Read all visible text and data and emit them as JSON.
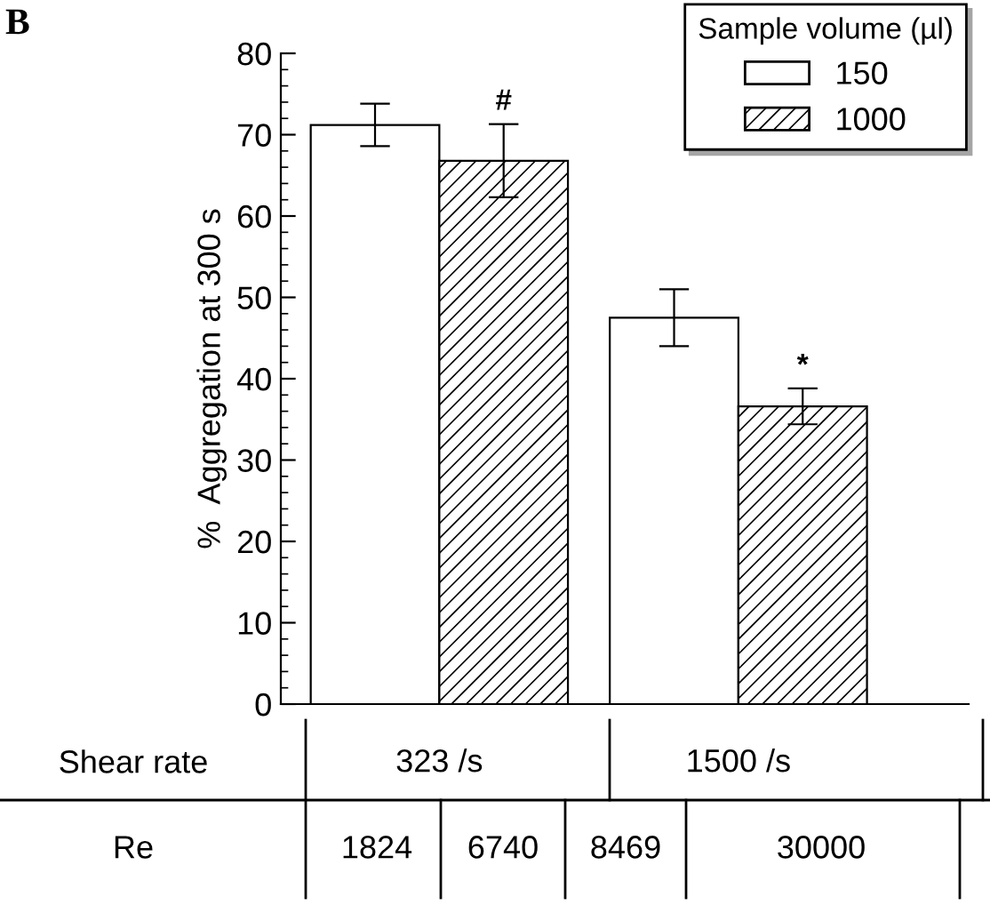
{
  "chart_data": {
    "type": "bar",
    "ylabel": "%  Aggregation at 300 s",
    "xlabel": "Shear rate",
    "legend_title": "Sample volume (µl)",
    "categories": [
      "323 /s",
      "1500 /s"
    ],
    "series": [
      {
        "name": "150",
        "color": "#ffffff",
        "values": [
          71.2,
          47.5
        ],
        "errors": [
          2.6,
          3.5
        ]
      },
      {
        "name": "1000",
        "color": "#000000",
        "values": [
          66.8,
          36.6
        ],
        "errors": [
          4.5,
          2.2
        ]
      }
    ],
    "ylim": [
      0,
      80
    ],
    "yticks": [
      0,
      10,
      20,
      30,
      40,
      50,
      60,
      70,
      80
    ],
    "legend": "top right",
    "annotations": [
      "B",
      "#",
      "*",
      "Re",
      "1824",
      "6740",
      "8469",
      "30000"
    ]
  }
}
